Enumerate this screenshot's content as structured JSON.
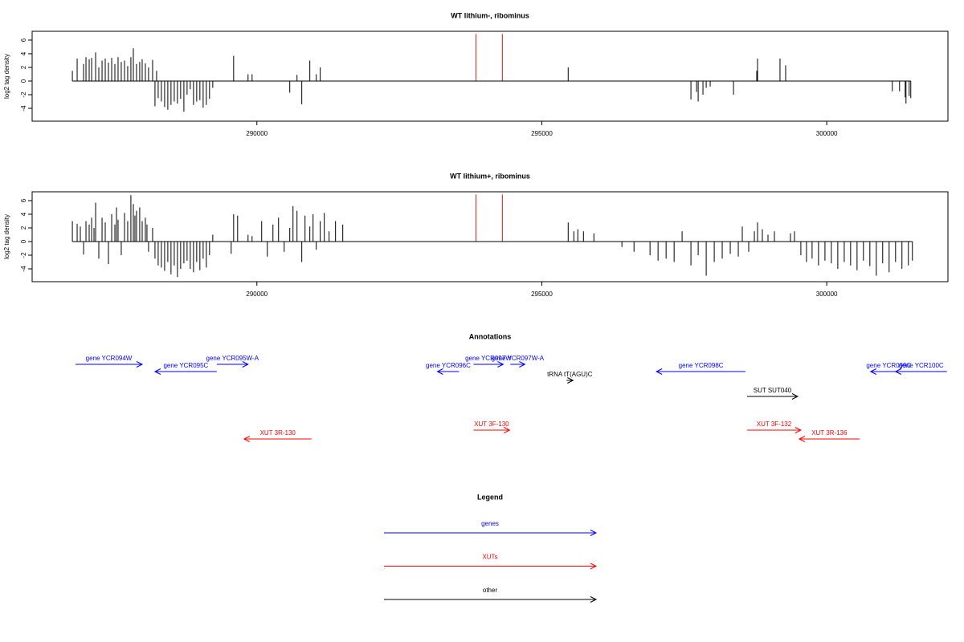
{
  "chart_data": [
    {
      "type": "spike",
      "title": "WT lithium-, ribominus",
      "ylabel": "log2 tag density",
      "xlim": [
        286056,
        302127
      ],
      "ylim": [
        -5.88,
        7.29
      ],
      "xticks": [
        290000,
        295000,
        300000
      ],
      "yticks": [
        -4,
        -2,
        0,
        2,
        4,
        6
      ],
      "series": [
        {
          "color": "#000000",
          "x": [
            286762,
            286846,
            286959,
            287001,
            287057,
            287100,
            287170,
            287226,
            287283,
            287339,
            287395,
            287452,
            287508,
            287564,
            287620,
            287677,
            287733,
            287789,
            287832,
            287888,
            287944,
            287987,
            288043,
            288099,
            288170,
            288212,
            288240,
            288268,
            288324,
            288381,
            288437,
            288493,
            288550,
            288606,
            288662,
            288719,
            288775,
            288831,
            288888,
            288944,
            289000,
            289057,
            289113,
            289169,
            289226,
            289592,
            289845,
            289916,
            290577,
            290704,
            290788,
            290929,
            291042,
            291112,
            295463,
            297617,
            297716,
            297744,
            297828,
            297885,
            297955,
            298364,
            298772,
            298786,
            299180,
            299279,
            301151,
            301278,
            301377,
            301391,
            301447,
            301475
          ],
          "values": [
            1.5,
            3.3,
            2.5,
            3.5,
            3.2,
            3.4,
            4.2,
            2.0,
            3.0,
            3.3,
            2.7,
            3.4,
            2.5,
            3.5,
            2.8,
            3.0,
            2.2,
            3.5,
            4.8,
            2.5,
            2.8,
            3.2,
            2.6,
            2.0,
            3.1,
            -3.7,
            1.5,
            -2.5,
            -3.0,
            -3.8,
            -4.2,
            -3.5,
            -3.0,
            -3.3,
            -2.6,
            -4.5,
            -2.0,
            -1.2,
            -3.5,
            -3.0,
            -2.8,
            -3.9,
            -3.5,
            -2.6,
            -1.0,
            3.7,
            1.0,
            1.0,
            -1.7,
            0.9,
            -3.4,
            3.0,
            1.0,
            2.0,
            2.0,
            -2.7,
            -1.6,
            -3.0,
            -2.0,
            -1.0,
            -0.8,
            -2.0,
            1.5,
            3.3,
            3.3,
            2.3,
            -1.5,
            -1.5,
            -2.4,
            -3.3,
            -2.2,
            -2.5
          ]
        },
        {
          "color": "#e41a1c",
          "x": [
            293844,
            294308
          ],
          "values": [
            6.9,
            6.9
          ]
        }
      ]
    },
    {
      "type": "spike",
      "title": "WT lithium+, ribominus",
      "ylabel": "log2 tag density",
      "xlim": [
        286056,
        302127
      ],
      "ylim": [
        -5.88,
        7.29
      ],
      "xticks": [
        290000,
        295000,
        300000
      ],
      "yticks": [
        -4,
        -2,
        0,
        2,
        4,
        6
      ],
      "series": [
        {
          "color": "#000000",
          "x": [
            286762,
            286846,
            286902,
            286959,
            287001,
            287057,
            287100,
            287142,
            287170,
            287226,
            287283,
            287339,
            287395,
            287452,
            287508,
            287536,
            287564,
            287620,
            287677,
            287733,
            287789,
            287832,
            287860,
            287888,
            287944,
            287987,
            288043,
            288071,
            288099,
            288170,
            288212,
            288268,
            288324,
            288381,
            288437,
            288493,
            288550,
            288606,
            288662,
            288719,
            288775,
            288831,
            288888,
            288944,
            289000,
            289057,
            289113,
            289169,
            289226,
            289549,
            289592,
            289662,
            289845,
            289916,
            290084,
            290183,
            290282,
            290380,
            290479,
            290577,
            290634,
            290704,
            290788,
            290845,
            290929,
            290986,
            291042,
            291112,
            291183,
            291267,
            291380,
            291507,
            295463,
            295562,
            295632,
            295731,
            295914,
            296406,
            296618,
            296899,
            297040,
            297181,
            297322,
            297462,
            297617,
            297744,
            297885,
            298026,
            298166,
            298307,
            298448,
            298518,
            298631,
            298730,
            298786,
            298870,
            298969,
            299082,
            299363,
            299434,
            299546,
            299645,
            299743,
            299856,
            299969,
            300081,
            300194,
            300307,
            300419,
            300532,
            300644,
            300757,
            300870,
            300982,
            301095,
            301208,
            301320,
            301433,
            301503
          ],
          "values": [
            3.0,
            2.6,
            2.2,
            -1.9,
            3.0,
            2.5,
            3.5,
            2.0,
            5.7,
            -2.5,
            3.5,
            2.8,
            -3.3,
            4.0,
            2.5,
            5.0,
            3.2,
            -2.0,
            4.2,
            3.0,
            6.8,
            5.5,
            3.8,
            4.5,
            5.0,
            3.0,
            3.5,
            2.5,
            -1.5,
            2.0,
            -2.5,
            -3.5,
            -3.8,
            -4.3,
            -3.0,
            -4.8,
            -3.5,
            -5.2,
            -4.0,
            -3.2,
            -2.8,
            -4.0,
            -4.5,
            -3.0,
            -4.2,
            -2.5,
            -3.8,
            -2.0,
            1.0,
            -1.8,
            4.0,
            3.8,
            1.0,
            0.8,
            3.0,
            -2.2,
            2.5,
            3.5,
            -1.5,
            2.0,
            5.2,
            4.5,
            -3.0,
            3.8,
            2.2,
            4.0,
            -1.2,
            3.0,
            4.2,
            1.5,
            3.0,
            2.5,
            2.8,
            1.5,
            1.8,
            1.5,
            1.2,
            -0.8,
            -1.5,
            -2.0,
            -2.8,
            -2.5,
            -3.0,
            1.5,
            -3.5,
            -2.0,
            -5.0,
            -3.0,
            -2.5,
            -1.8,
            -2.2,
            2.2,
            -1.5,
            1.5,
            2.8,
            1.8,
            1.0,
            1.5,
            1.2,
            1.5,
            -2.0,
            -3.0,
            -2.5,
            -3.5,
            -2.8,
            -3.2,
            -4.0,
            -3.0,
            -3.5,
            -4.2,
            -2.8,
            -3.6,
            -5.0,
            -3.2,
            -4.5,
            -3.0,
            -4.0,
            -3.5,
            -2.8
          ]
        },
        {
          "color": "#e41a1c",
          "x": [
            293844,
            294308
          ],
          "values": [
            6.9,
            6.9
          ]
        }
      ]
    }
  ],
  "annotations": {
    "title": "Annotations",
    "features": [
      {
        "label": "gene YCR094W",
        "start": 286818,
        "end": 287987,
        "strand": "+",
        "color": "#0000ff"
      },
      {
        "label": "gene YCR095C",
        "start": 288212,
        "end": 289296,
        "strand": "-",
        "color": "#0000ff"
      },
      {
        "label": "gene YCR095W-A",
        "start": 289296,
        "end": 289845,
        "strand": "+",
        "color": "#0000ff"
      },
      {
        "label": "gene YCR096C",
        "start": 293168,
        "end": 293548,
        "strand": "-",
        "color": "#0000ff"
      },
      {
        "label": "gene YCR097W",
        "start": 293802,
        "end": 294323,
        "strand": "+",
        "color": "#0000ff"
      },
      {
        "label": "gene YCR097W-A",
        "start": 294449,
        "end": 294703,
        "strand": "+",
        "color": "#0000ff"
      },
      {
        "label": "tRNA tT(AGU)C",
        "start": 295435,
        "end": 295548,
        "strand": "+",
        "color": "#000000"
      },
      {
        "label": "gene YCR098C",
        "start": 297012,
        "end": 298575,
        "strand": "-",
        "color": "#0000ff"
      },
      {
        "label": "SUT SUT040",
        "start": 298603,
        "end": 299490,
        "strand": "+",
        "color": "#000000"
      },
      {
        "label": "gene YCR099C",
        "start": 300771,
        "end": 301405,
        "strand": "-",
        "color": "#0000ff"
      },
      {
        "label": "gene YCR100C",
        "start": 301208,
        "end": 302109,
        "strand": "-",
        "color": "#0000ff"
      },
      {
        "label": "XUT 3R-130",
        "start": 289775,
        "end": 290957,
        "strand": "-",
        "color": "#ff0000"
      },
      {
        "label": "XUT 3F-130",
        "start": 293802,
        "end": 294435,
        "strand": "+",
        "color": "#ff0000"
      },
      {
        "label": "XUT 3F-132",
        "start": 298603,
        "end": 299546,
        "strand": "+",
        "color": "#ff0000"
      },
      {
        "label": "XUT 3R-136",
        "start": 299518,
        "end": 300574,
        "strand": "-",
        "color": "#ff0000"
      }
    ]
  },
  "legend": {
    "title": "Legend",
    "items": [
      {
        "label": "genes",
        "color": "#0000ff"
      },
      {
        "label": "XUTs",
        "color": "#ff0000"
      },
      {
        "label": "other",
        "color": "#000000"
      }
    ]
  }
}
